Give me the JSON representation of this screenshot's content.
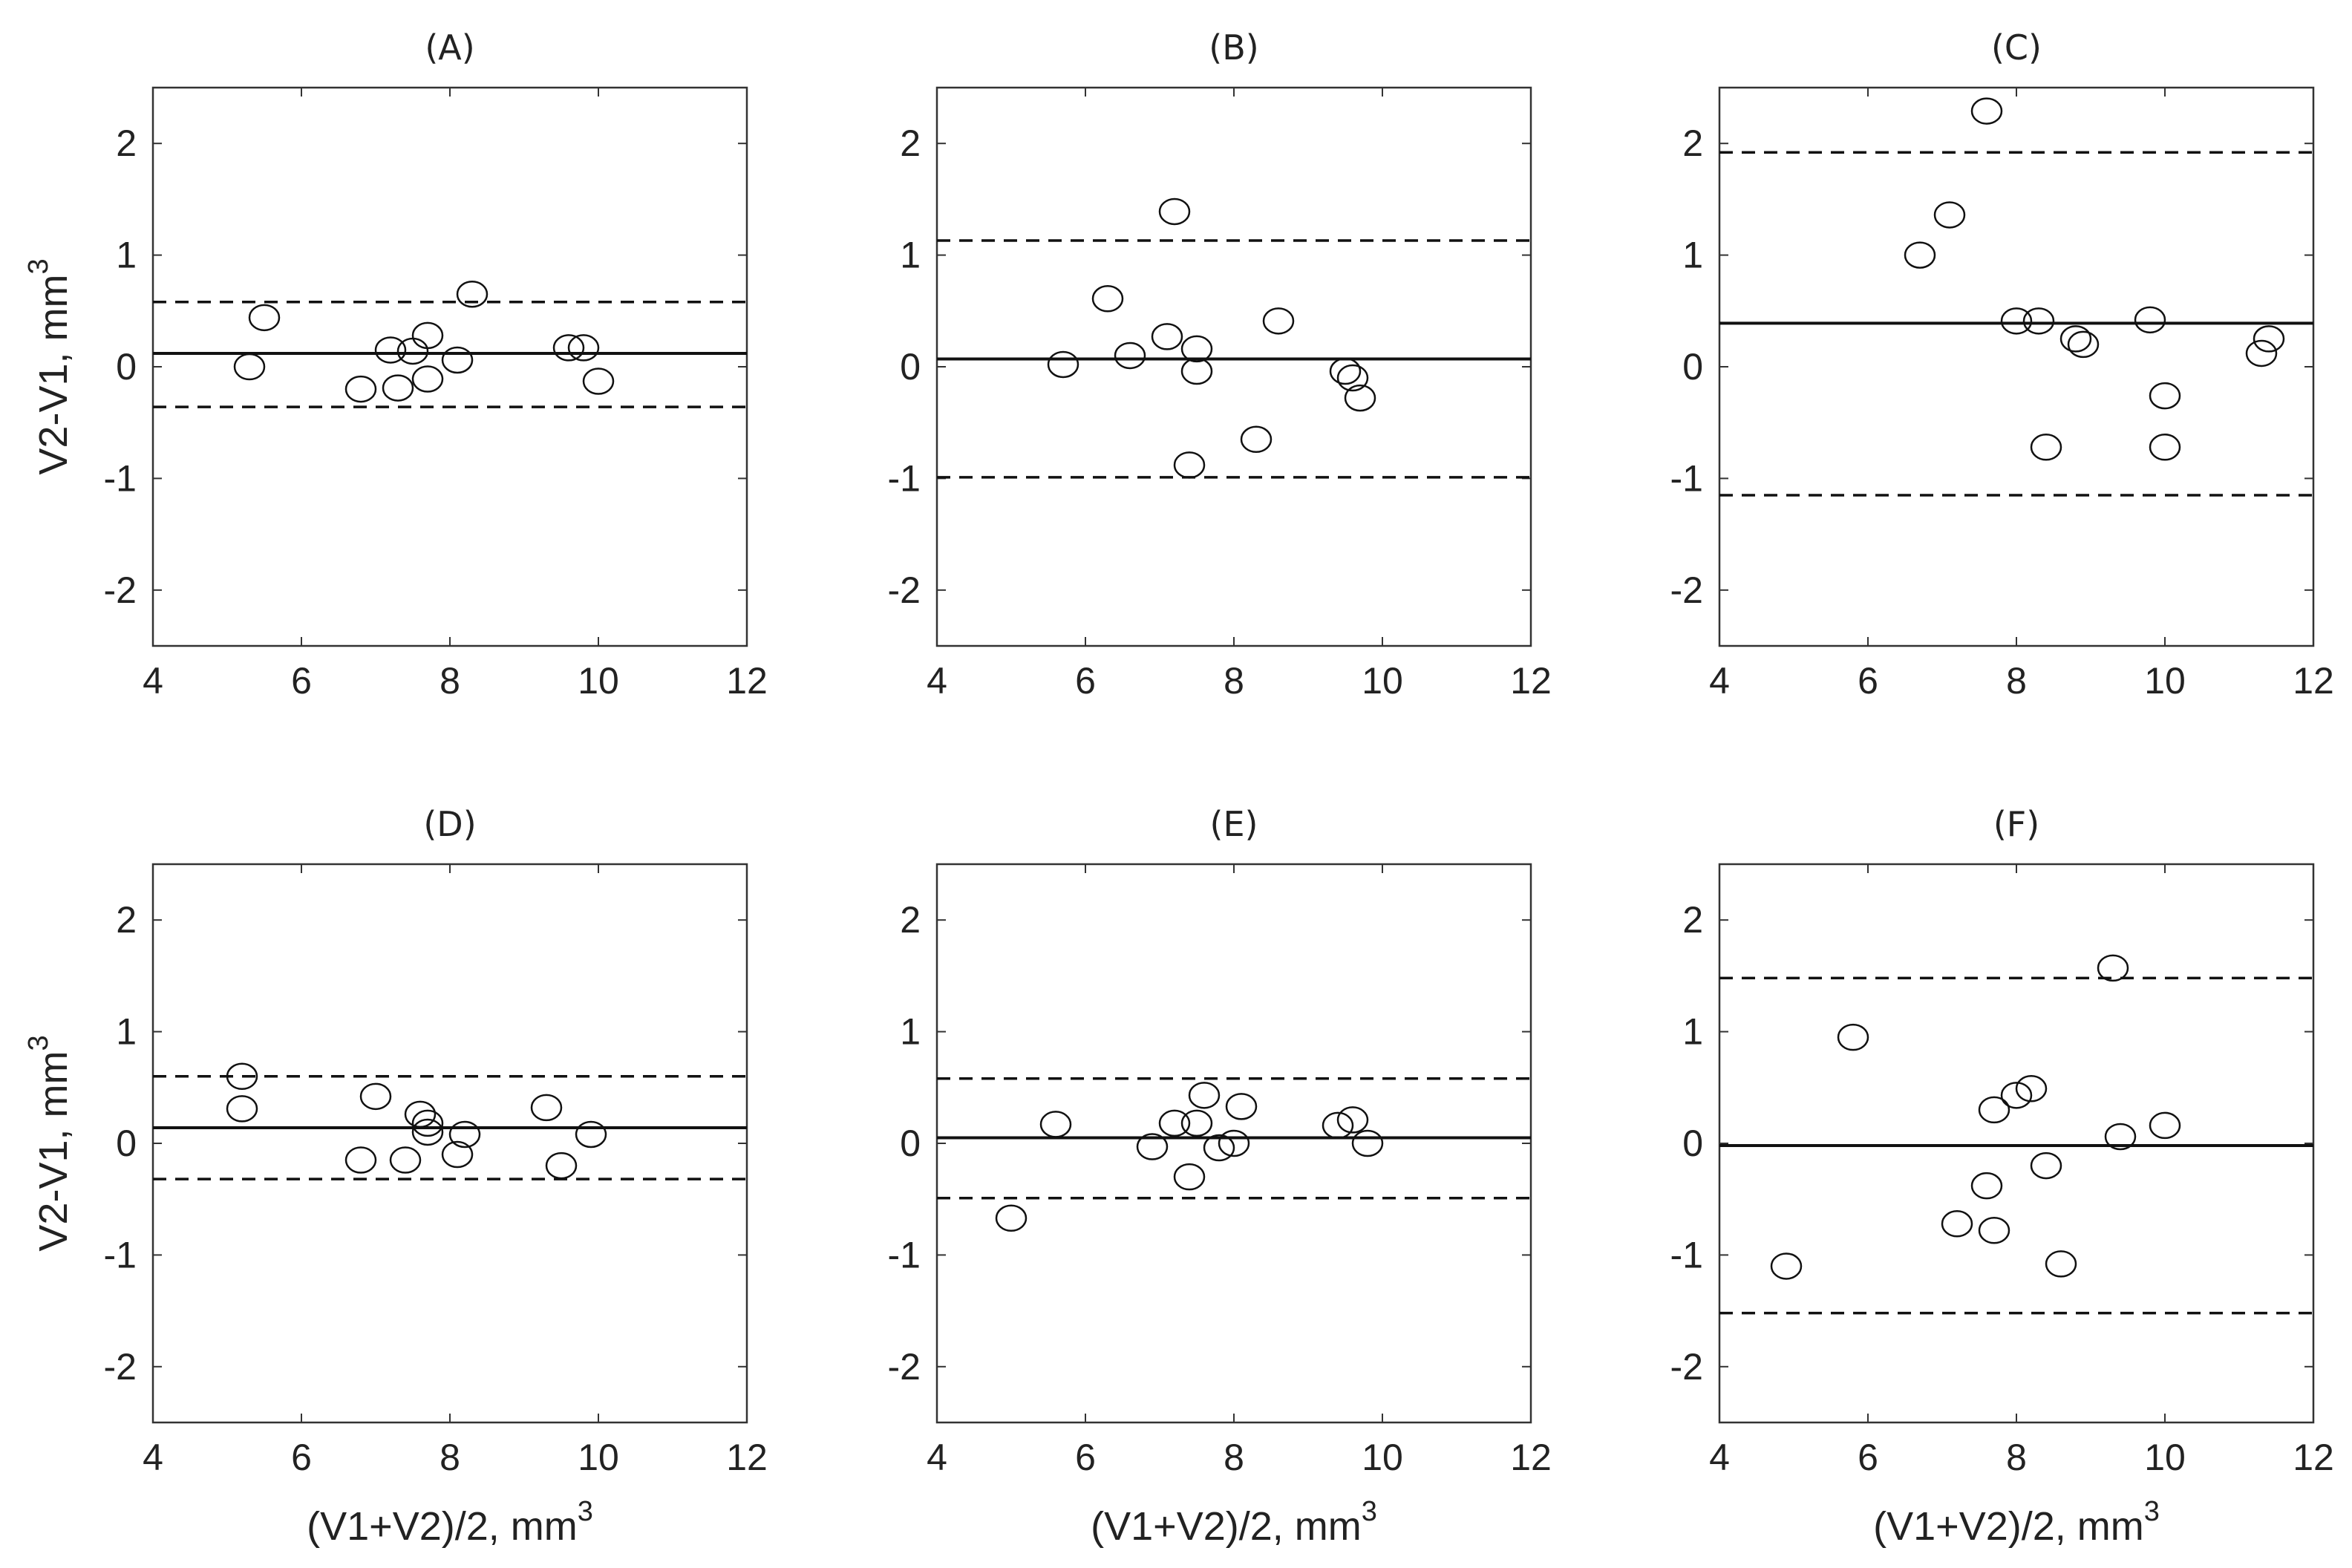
{
  "figure": {
    "ylabel": "V2-V1, mm",
    "xlabel": "(V1+V2)/2, mm",
    "unit_exponent": "3"
  },
  "chart_data": [
    {
      "type": "scatter",
      "title": "(A)",
      "xlabel": "",
      "ylabel": "V2-V1, mm³",
      "xlim": [
        4,
        12
      ],
      "ylim": [
        -2.5,
        2.5
      ],
      "xticks": [
        4,
        6,
        8,
        10,
        12
      ],
      "yticks": [
        -2,
        -1,
        0,
        1,
        2
      ],
      "mean": 0.12,
      "upper_loa": 0.58,
      "lower_loa": -0.36,
      "points": [
        [
          5.3,
          0.0
        ],
        [
          5.5,
          0.44
        ],
        [
          6.8,
          -0.2
        ],
        [
          7.2,
          0.15
        ],
        [
          7.3,
          -0.19
        ],
        [
          7.5,
          0.14
        ],
        [
          7.7,
          0.28
        ],
        [
          7.7,
          -0.11
        ],
        [
          8.1,
          0.06
        ],
        [
          8.3,
          0.65
        ],
        [
          9.6,
          0.17
        ],
        [
          9.8,
          0.17
        ],
        [
          10.0,
          -0.13
        ]
      ]
    },
    {
      "type": "scatter",
      "title": "(B)",
      "xlabel": "",
      "ylabel": "",
      "xlim": [
        4,
        12
      ],
      "ylim": [
        -2.5,
        2.5
      ],
      "xticks": [
        4,
        6,
        8,
        10,
        12
      ],
      "yticks": [
        -2,
        -1,
        0,
        1,
        2
      ],
      "mean": 0.07,
      "upper_loa": 1.13,
      "lower_loa": -0.99,
      "points": [
        [
          5.7,
          0.02
        ],
        [
          6.3,
          0.61
        ],
        [
          6.6,
          0.1
        ],
        [
          7.1,
          0.27
        ],
        [
          7.2,
          1.39
        ],
        [
          7.4,
          -0.88
        ],
        [
          7.5,
          0.16
        ],
        [
          7.5,
          -0.04
        ],
        [
          8.3,
          -0.65
        ],
        [
          8.6,
          0.41
        ],
        [
          9.5,
          -0.04
        ],
        [
          9.6,
          -0.1
        ],
        [
          9.7,
          -0.28
        ]
      ]
    },
    {
      "type": "scatter",
      "title": "(C)",
      "xlabel": "",
      "ylabel": "",
      "xlim": [
        4,
        12
      ],
      "ylim": [
        -2.5,
        2.5
      ],
      "xticks": [
        4,
        6,
        8,
        10,
        12
      ],
      "yticks": [
        -2,
        -1,
        0,
        1,
        2
      ],
      "mean": 0.39,
      "upper_loa": 1.92,
      "lower_loa": -1.15,
      "points": [
        [
          6.7,
          1.0
        ],
        [
          7.1,
          1.36
        ],
        [
          7.6,
          2.29
        ],
        [
          8.0,
          0.41
        ],
        [
          8.3,
          0.41
        ],
        [
          8.4,
          -0.72
        ],
        [
          8.8,
          0.25
        ],
        [
          8.9,
          0.2
        ],
        [
          9.8,
          0.42
        ],
        [
          10.0,
          -0.26
        ],
        [
          10.0,
          -0.72
        ],
        [
          11.3,
          0.12
        ],
        [
          11.4,
          0.25
        ]
      ]
    },
    {
      "type": "scatter",
      "title": "(D)",
      "xlabel": "(V1+V2)/2, mm³",
      "ylabel": "V2-V1, mm³",
      "xlim": [
        4,
        12
      ],
      "ylim": [
        -2.5,
        2.5
      ],
      "xticks": [
        4,
        6,
        8,
        10,
        12
      ],
      "yticks": [
        -2,
        -1,
        0,
        1,
        2
      ],
      "mean": 0.14,
      "upper_loa": 0.6,
      "lower_loa": -0.32,
      "points": [
        [
          5.2,
          0.6
        ],
        [
          5.2,
          0.31
        ],
        [
          6.8,
          -0.15
        ],
        [
          7.0,
          0.42
        ],
        [
          7.4,
          -0.15
        ],
        [
          7.6,
          0.26
        ],
        [
          7.7,
          0.18
        ],
        [
          7.7,
          0.1
        ],
        [
          8.1,
          -0.1
        ],
        [
          8.2,
          0.08
        ],
        [
          9.3,
          0.32
        ],
        [
          9.5,
          -0.2
        ],
        [
          9.9,
          0.08
        ]
      ]
    },
    {
      "type": "scatter",
      "title": "(E)",
      "xlabel": "(V1+V2)/2, mm³",
      "ylabel": "",
      "xlim": [
        4,
        12
      ],
      "ylim": [
        -2.5,
        2.5
      ],
      "xticks": [
        4,
        6,
        8,
        10,
        12
      ],
      "yticks": [
        -2,
        -1,
        0,
        1,
        2
      ],
      "mean": 0.05,
      "upper_loa": 0.58,
      "lower_loa": -0.49,
      "points": [
        [
          5.0,
          -0.67
        ],
        [
          5.6,
          0.17
        ],
        [
          6.9,
          -0.03
        ],
        [
          7.2,
          0.18
        ],
        [
          7.4,
          -0.3
        ],
        [
          7.5,
          0.18
        ],
        [
          7.6,
          0.43
        ],
        [
          7.8,
          -0.04
        ],
        [
          8.0,
          0.0
        ],
        [
          8.1,
          0.33
        ],
        [
          9.4,
          0.16
        ],
        [
          9.6,
          0.21
        ],
        [
          9.8,
          0.0
        ]
      ]
    },
    {
      "type": "scatter",
      "title": "(F)",
      "xlabel": "(V1+V2)/2, mm³",
      "ylabel": "",
      "xlim": [
        4,
        12
      ],
      "ylim": [
        -2.5,
        2.5
      ],
      "xticks": [
        4,
        6,
        8,
        10,
        12
      ],
      "yticks": [
        -2,
        -1,
        0,
        1,
        2
      ],
      "mean": -0.02,
      "upper_loa": 1.48,
      "lower_loa": -1.52,
      "points": [
        [
          4.9,
          -1.1
        ],
        [
          5.8,
          0.95
        ],
        [
          7.2,
          -0.72
        ],
        [
          7.6,
          -0.38
        ],
        [
          7.7,
          0.3
        ],
        [
          7.7,
          -0.78
        ],
        [
          8.0,
          0.43
        ],
        [
          8.2,
          0.49
        ],
        [
          8.4,
          -0.2
        ],
        [
          8.6,
          -1.08
        ],
        [
          9.3,
          1.57
        ],
        [
          9.4,
          0.06
        ],
        [
          10.0,
          0.16
        ]
      ]
    }
  ]
}
